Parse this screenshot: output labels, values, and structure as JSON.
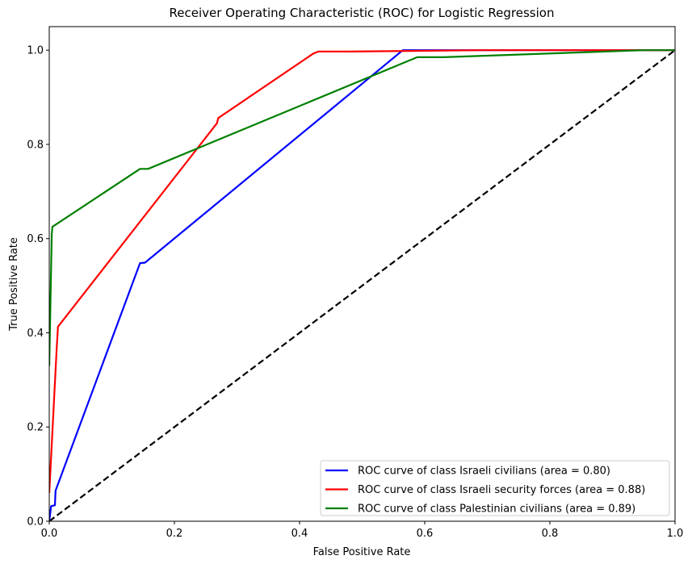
{
  "chart_data": {
    "type": "line",
    "title": "Receiver Operating Characteristic (ROC) for Logistic Regression",
    "xlabel": "False Positive Rate",
    "ylabel": "True Positive Rate",
    "xlim": [
      0.0,
      1.0
    ],
    "ylim": [
      0.0,
      1.05
    ],
    "xticks": [
      "0.0",
      "0.2",
      "0.4",
      "0.6",
      "0.8",
      "1.0"
    ],
    "yticks": [
      "0.0",
      "0.2",
      "0.4",
      "0.6",
      "0.8",
      "1.0"
    ],
    "grid": false,
    "legend_position": "lower-right",
    "series": [
      {
        "name": "ROC curve of class Israeli civilians (area = 0.80)",
        "color": "#0000ff",
        "points": [
          [
            0.0,
            0.0
          ],
          [
            0.003,
            0.032
          ],
          [
            0.009,
            0.034
          ],
          [
            0.01,
            0.065
          ],
          [
            0.145,
            0.548
          ],
          [
            0.153,
            0.549
          ],
          [
            0.565,
            1.0
          ],
          [
            1.0,
            1.0
          ]
        ]
      },
      {
        "name": "ROC curve of class Israeli security forces (area = 0.88)",
        "color": "#ff0000",
        "points": [
          [
            0.0,
            0.06
          ],
          [
            0.012,
            0.37
          ],
          [
            0.014,
            0.413
          ],
          [
            0.268,
            0.845
          ],
          [
            0.27,
            0.856
          ],
          [
            0.422,
            0.993
          ],
          [
            0.43,
            0.997
          ],
          [
            0.48,
            0.997
          ],
          [
            0.69,
            1.0
          ],
          [
            1.0,
            1.0
          ]
        ]
      },
      {
        "name": "ROC curve of class Palestinian civilians (area = 0.89)",
        "color": "#008000",
        "points": [
          [
            0.0,
            0.33
          ],
          [
            0.004,
            0.61
          ],
          [
            0.005,
            0.625
          ],
          [
            0.145,
            0.748
          ],
          [
            0.158,
            0.748
          ],
          [
            0.588,
            0.985
          ],
          [
            0.63,
            0.985
          ],
          [
            0.95,
            1.0
          ],
          [
            1.0,
            1.0
          ]
        ]
      },
      {
        "name": "",
        "color": "#000000",
        "dashed": true,
        "points": [
          [
            0.0,
            0.0
          ],
          [
            1.0,
            1.0
          ]
        ]
      }
    ]
  }
}
